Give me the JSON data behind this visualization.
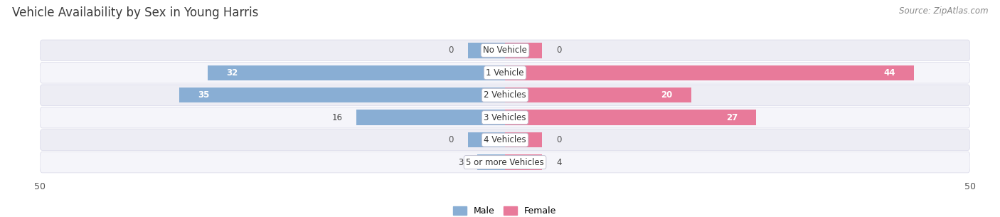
{
  "title": "Vehicle Availability by Sex in Young Harris",
  "source": "Source: ZipAtlas.com",
  "categories": [
    "No Vehicle",
    "1 Vehicle",
    "2 Vehicles",
    "3 Vehicles",
    "4 Vehicles",
    "5 or more Vehicles"
  ],
  "male_values": [
    0,
    32,
    35,
    16,
    0,
    3
  ],
  "female_values": [
    0,
    44,
    20,
    27,
    0,
    4
  ],
  "male_color": "#89aed4",
  "female_color": "#e87a9a",
  "row_bg_odd": "#ededf4",
  "row_bg_even": "#f5f5fa",
  "row_border": "#d8d8e8",
  "xlim": 50,
  "legend_male": "Male",
  "legend_female": "Female",
  "title_fontsize": 12,
  "source_fontsize": 8.5,
  "label_fontsize": 8.5,
  "axis_label_fontsize": 9,
  "category_fontsize": 8.5,
  "zero_stub": 4
}
